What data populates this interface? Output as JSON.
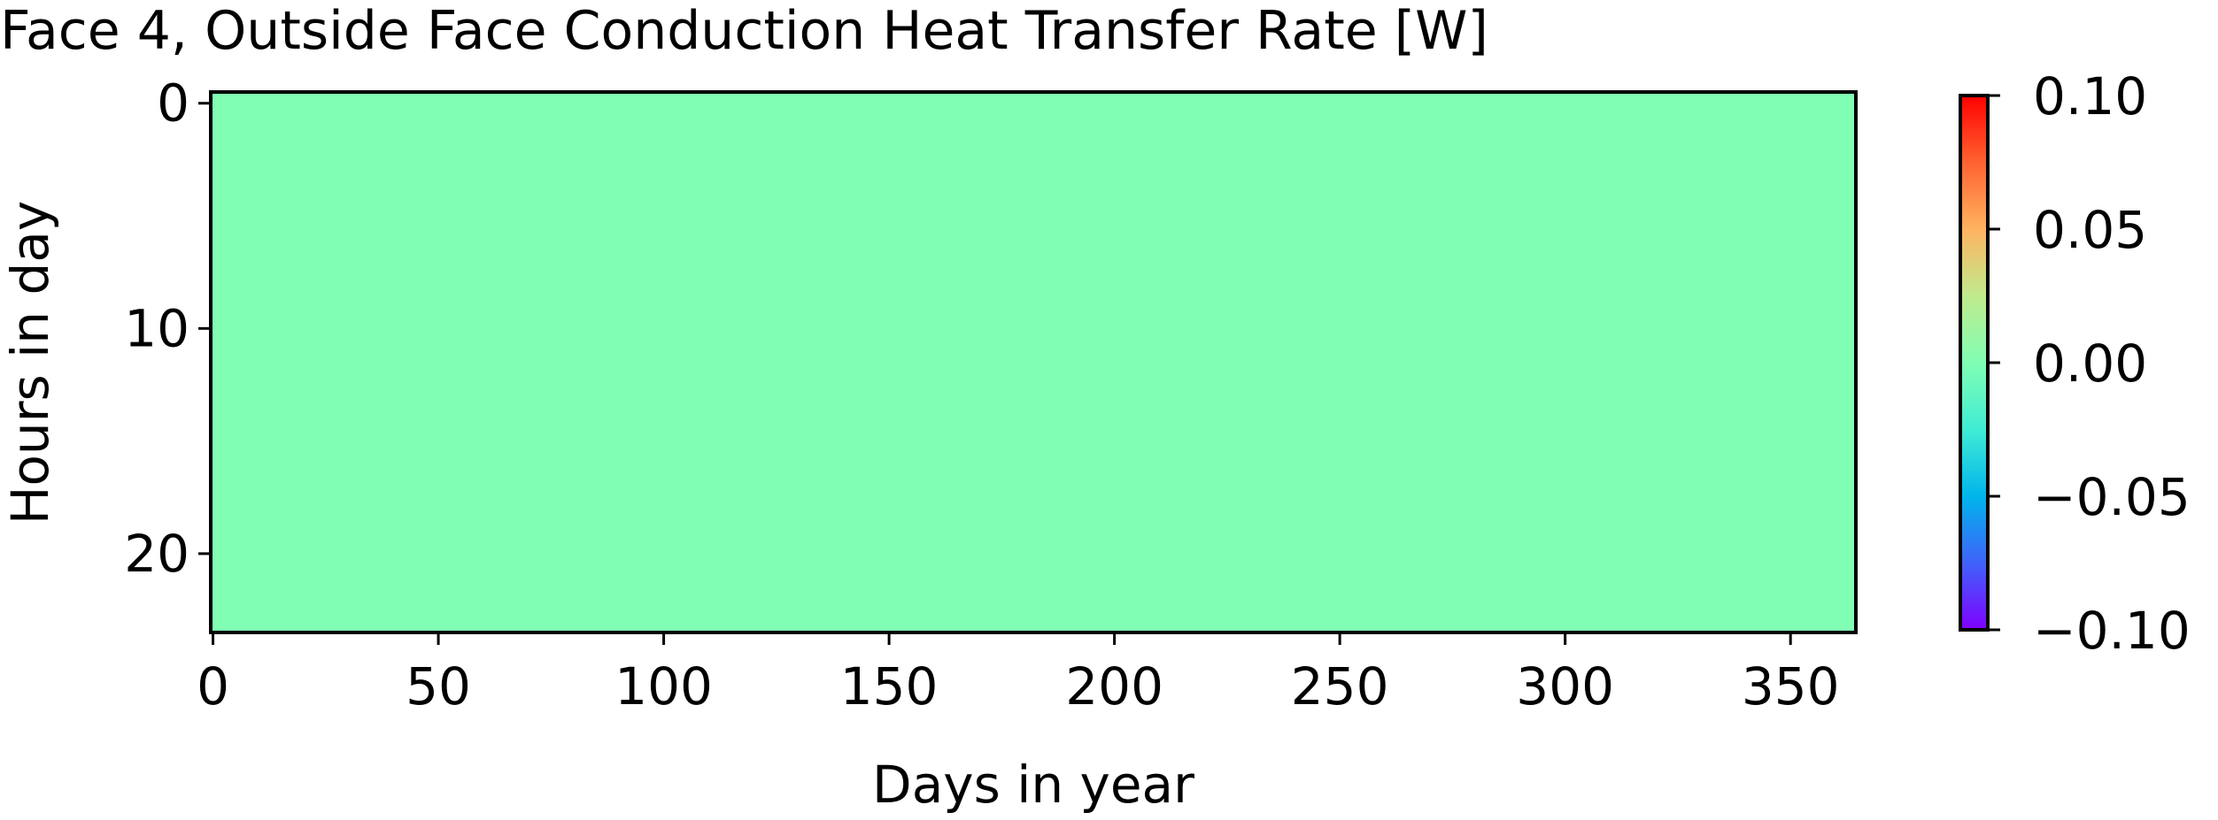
{
  "chart_data": {
    "type": "heatmap",
    "title": "Face 4, Outside Face Conduction Heat Transfer Rate [W]",
    "xlabel": "Days in year",
    "ylabel": "Hours in day",
    "xlim": [
      -0.5,
      364.5
    ],
    "ylim": [
      23.5,
      -0.5
    ],
    "xticks": [
      0,
      50,
      100,
      150,
      200,
      250,
      300,
      350
    ],
    "xtick_labels": [
      "0",
      "50",
      "100",
      "150",
      "200",
      "250",
      "300",
      "350"
    ],
    "yticks": [
      0,
      10,
      20
    ],
    "ytick_labels": [
      "0",
      "10",
      "20"
    ],
    "grid": false,
    "n_days": 365,
    "n_hours": 24,
    "values_description_value": 0.0,
    "value_uniform": 0.0,
    "colormap": "rainbow",
    "colorbar": {
      "vmin": -0.1,
      "vmax": 0.1,
      "ticks": [
        -0.1,
        -0.05,
        0.0,
        0.05,
        0.1
      ],
      "tick_labels": [
        "−0.10",
        "−0.05",
        "0.00",
        "0.05",
        "0.10"
      ],
      "placement": "right"
    },
    "colors": {
      "fill": "#80feb3",
      "axes": "#000000",
      "background": "#ffffff"
    }
  }
}
